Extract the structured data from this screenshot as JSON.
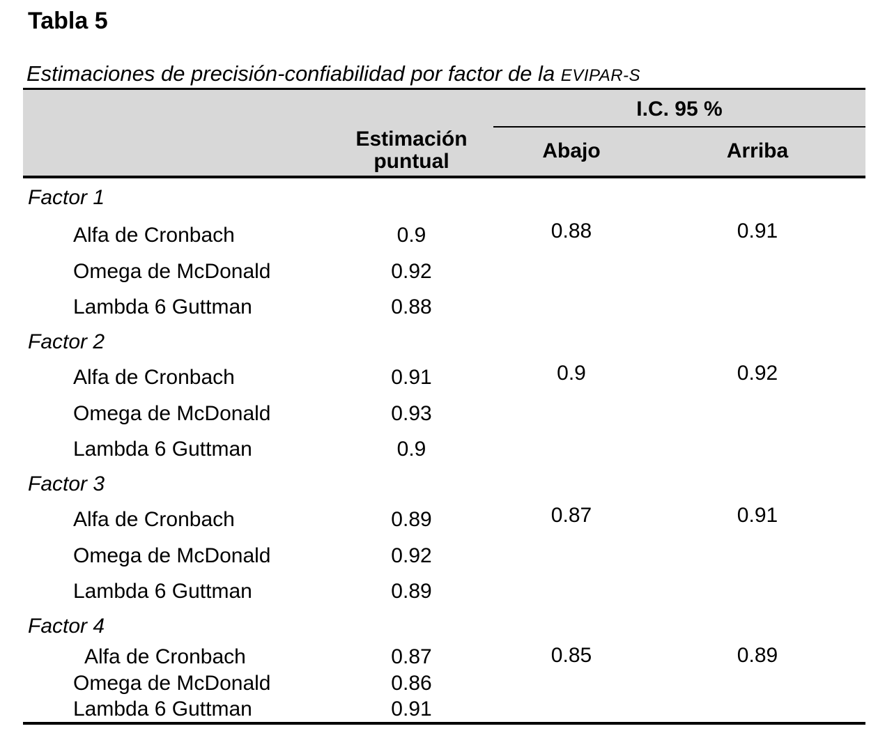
{
  "page": {
    "title": "Tabla 5",
    "caption": {
      "main": "Estimaciones de precisión-confiabilidad por factor de la ",
      "acronym": "EVIPAR-S"
    }
  },
  "table": {
    "columns": {
      "estimation": "Estimación puntual",
      "ci": "I.C. 95 %",
      "ci_low": "Abajo",
      "ci_high": "Arriba"
    },
    "factors": [
      {
        "label": "Factor 1",
        "ci_low": "0.88",
        "ci_high": "0.91",
        "rows": [
          {
            "label": "Alfa de Cronbach",
            "value": "0.9"
          },
          {
            "label": "Omega de McDonald",
            "value": "0.92"
          },
          {
            "label": "Lambda 6 Guttman",
            "value": "0.88"
          }
        ]
      },
      {
        "label": "Factor 2",
        "ci_low": "0.9",
        "ci_high": "0.92",
        "rows": [
          {
            "label": "Alfa de Cronbach",
            "value": "0.91"
          },
          {
            "label": "Omega de McDonald",
            "value": "0.93"
          },
          {
            "label": "Lambda 6 Guttman",
            "value": "0.9"
          }
        ]
      },
      {
        "label": "Factor 3",
        "ci_low": "0.87",
        "ci_high": "0.91",
        "rows": [
          {
            "label": "Alfa de Cronbach",
            "value": "0.89"
          },
          {
            "label": "Omega de McDonald",
            "value": "0.92"
          },
          {
            "label": "Lambda 6 Guttman",
            "value": "0.89"
          }
        ]
      },
      {
        "label": "Factor 4",
        "ci_low": "0.85",
        "ci_high": "0.89",
        "rows": [
          {
            "label": "Alfa de Cronbach",
            "value": "0.87"
          },
          {
            "label": "Omega de McDonald",
            "value": "0.86"
          },
          {
            "label": "Lambda 6 Guttman",
            "value": "0.91"
          }
        ]
      }
    ]
  },
  "colors": {
    "header_bg": "#d8d8d8",
    "rule": "#000000",
    "text": "#000000",
    "page_bg": "#ffffff"
  }
}
